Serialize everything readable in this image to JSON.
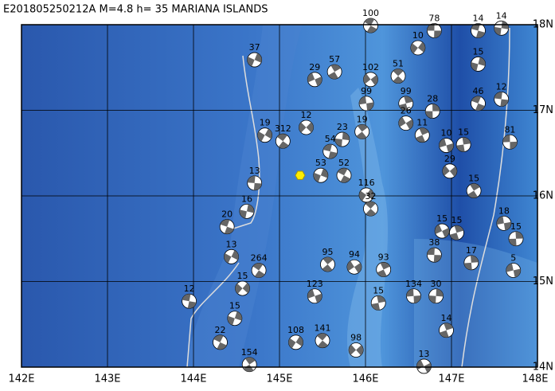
{
  "title": "E201805250212A  M=4.8  h= 35  MARIANA ISLANDS",
  "map": {
    "lonlim": [
      142,
      148
    ],
    "latlim": [
      14,
      18
    ],
    "lonticks": [
      {
        "value": 142,
        "label": "142E"
      },
      {
        "value": 143,
        "label": "143E"
      },
      {
        "value": 144,
        "label": "144E"
      },
      {
        "value": 145,
        "label": "145E"
      },
      {
        "value": 146,
        "label": "146E"
      },
      {
        "value": 147,
        "label": "147E"
      },
      {
        "value": 148,
        "label": "148E"
      }
    ],
    "latticks": [
      {
        "value": 14,
        "label": "14N"
      },
      {
        "value": 15,
        "label": "15N"
      },
      {
        "value": 16,
        "label": "16N"
      },
      {
        "value": 17,
        "label": "17N"
      },
      {
        "value": 18,
        "label": "18N"
      }
    ],
    "epicenter": {
      "lon": 145.24,
      "lat": 16.24
    },
    "events": [
      {
        "lon": 146.8,
        "lat": 17.93,
        "depth": 78
      },
      {
        "lon": 147.58,
        "lat": 17.96,
        "depth": 14
      },
      {
        "lon": 147.31,
        "lat": 17.93,
        "depth": 14
      },
      {
        "lon": 144.71,
        "lat": 17.59,
        "depth": 37
      },
      {
        "lon": 146.06,
        "lat": 17.99,
        "depth": 100
      },
      {
        "lon": 146.61,
        "lat": 17.73,
        "depth": 10
      },
      {
        "lon": 146.38,
        "lat": 17.4,
        "depth": 51
      },
      {
        "lon": 146.06,
        "lat": 17.36,
        "depth": 102
      },
      {
        "lon": 145.64,
        "lat": 17.45,
        "depth": 57
      },
      {
        "lon": 145.41,
        "lat": 17.36,
        "depth": 29
      },
      {
        "lon": 146.47,
        "lat": 17.08,
        "depth": 99
      },
      {
        "lon": 146.01,
        "lat": 17.08,
        "depth": 99
      },
      {
        "lon": 146.78,
        "lat": 16.99,
        "depth": 28
      },
      {
        "lon": 147.58,
        "lat": 17.13,
        "depth": 12
      },
      {
        "lon": 147.31,
        "lat": 17.54,
        "depth": 15
      },
      {
        "lon": 147.31,
        "lat": 17.08,
        "depth": 46
      },
      {
        "lon": 144.83,
        "lat": 16.71,
        "depth": 19
      },
      {
        "lon": 145.04,
        "lat": 16.64,
        "depth": 312
      },
      {
        "lon": 145.31,
        "lat": 16.8,
        "depth": 12
      },
      {
        "lon": 145.96,
        "lat": 16.75,
        "depth": 19
      },
      {
        "lon": 146.47,
        "lat": 16.85,
        "depth": 26
      },
      {
        "lon": 146.66,
        "lat": 16.71,
        "depth": 11
      },
      {
        "lon": 146.94,
        "lat": 16.59,
        "depth": 10
      },
      {
        "lon": 147.14,
        "lat": 16.6,
        "depth": 15
      },
      {
        "lon": 147.68,
        "lat": 16.63,
        "depth": 81
      },
      {
        "lon": 145.73,
        "lat": 16.66,
        "depth": 23
      },
      {
        "lon": 145.59,
        "lat": 16.52,
        "depth": 54
      },
      {
        "lon": 145.48,
        "lat": 16.24,
        "depth": 53
      },
      {
        "lon": 145.75,
        "lat": 16.24,
        "depth": 52
      },
      {
        "lon": 146.01,
        "lat": 16.01,
        "depth": 116
      },
      {
        "lon": 146.06,
        "lat": 15.85,
        "depth": 32
      },
      {
        "lon": 146.98,
        "lat": 16.29,
        "depth": 29
      },
      {
        "lon": 147.26,
        "lat": 16.06,
        "depth": 15
      },
      {
        "lon": 146.89,
        "lat": 15.59,
        "depth": 15
      },
      {
        "lon": 147.06,
        "lat": 15.57,
        "depth": 15
      },
      {
        "lon": 147.61,
        "lat": 15.68,
        "depth": 18
      },
      {
        "lon": 147.75,
        "lat": 15.5,
        "depth": 15
      },
      {
        "lon": 144.71,
        "lat": 16.15,
        "depth": 13
      },
      {
        "lon": 144.62,
        "lat": 15.82,
        "depth": 16
      },
      {
        "lon": 144.39,
        "lat": 15.64,
        "depth": 20
      },
      {
        "lon": 144.44,
        "lat": 15.29,
        "depth": 13
      },
      {
        "lon": 144.76,
        "lat": 15.13,
        "depth": 264
      },
      {
        "lon": 144.57,
        "lat": 14.92,
        "depth": 15
      },
      {
        "lon": 145.56,
        "lat": 15.2,
        "depth": 95
      },
      {
        "lon": 145.87,
        "lat": 15.17,
        "depth": 94
      },
      {
        "lon": 146.21,
        "lat": 15.14,
        "depth": 93
      },
      {
        "lon": 145.41,
        "lat": 14.83,
        "depth": 123
      },
      {
        "lon": 146.15,
        "lat": 14.75,
        "depth": 15
      },
      {
        "lon": 146.56,
        "lat": 14.83,
        "depth": 134
      },
      {
        "lon": 146.82,
        "lat": 14.83,
        "depth": 30
      },
      {
        "lon": 143.95,
        "lat": 14.77,
        "depth": 12
      },
      {
        "lon": 144.48,
        "lat": 14.57,
        "depth": 15
      },
      {
        "lon": 144.31,
        "lat": 14.29,
        "depth": 22
      },
      {
        "lon": 145.19,
        "lat": 14.29,
        "depth": 108
      },
      {
        "lon": 145.5,
        "lat": 14.31,
        "depth": 141
      },
      {
        "lon": 145.89,
        "lat": 14.2,
        "depth": 98
      },
      {
        "lon": 144.65,
        "lat": 14.03,
        "depth": 154
      },
      {
        "lon": 146.68,
        "lat": 14.01,
        "depth": 13
      },
      {
        "lon": 146.94,
        "lat": 14.43,
        "depth": 14
      },
      {
        "lon": 147.72,
        "lat": 15.13,
        "depth": 5
      },
      {
        "lon": 147.23,
        "lat": 15.22,
        "depth": 17
      },
      {
        "lon": 146.8,
        "lat": 15.31,
        "depth": 38
      }
    ]
  }
}
